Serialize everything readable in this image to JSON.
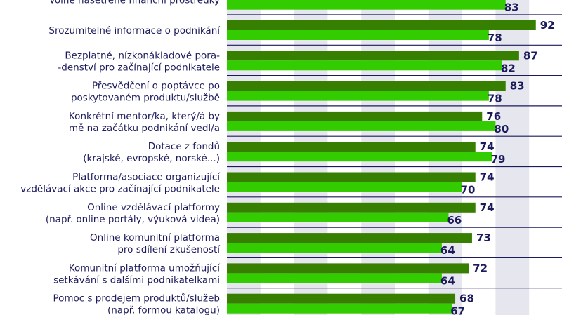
{
  "chart_data": {
    "type": "bar",
    "orientation": "horizontal",
    "xlim": [
      0,
      100
    ],
    "grid": "alternating vertical bands every 10",
    "colors": {
      "series1": "#367f00",
      "series2": "#33cc00",
      "text": "#1b1b5c",
      "band": "#e6e6ee"
    },
    "categories": [
      [
        "Volné našetřené finanční prostředky"
      ],
      [
        "Srozumitelné informace o podnikání"
      ],
      [
        "Bezplatné, nízkonákladové pora-",
        "-denství pro začínající podnikatele"
      ],
      [
        "Přesvědčení o poptávce po",
        "poskytovaném produktu/službě"
      ],
      [
        "Konkrétní mentor/ka, který/á by",
        "mě na začátku podnikání vedl/a"
      ],
      [
        "Dotace z fondů",
        "(krajské, evropské, norské...)"
      ],
      [
        "Platforma/asociace organizující",
        "vzdělávací akce pro začínající podnikatele"
      ],
      [
        "Online vzdělávací platformy",
        "(např. online portály, výuková videa)"
      ],
      [
        "Online komunitní platforma",
        "pro sdílení zkušeností"
      ],
      [
        "Komunitní platforma umožňující",
        "setkávání s dalšími podnikatelkami"
      ],
      [
        "Pomoc s prodejem produktů/služeb",
        "(např. formou katalogu)"
      ]
    ],
    "series": [
      {
        "values": [
          null,
          92,
          87,
          83,
          76,
          74,
          74,
          74,
          73,
          72,
          68
        ]
      },
      {
        "values": [
          83,
          78,
          82,
          78,
          80,
          79,
          70,
          66,
          64,
          64,
          67
        ]
      }
    ]
  }
}
